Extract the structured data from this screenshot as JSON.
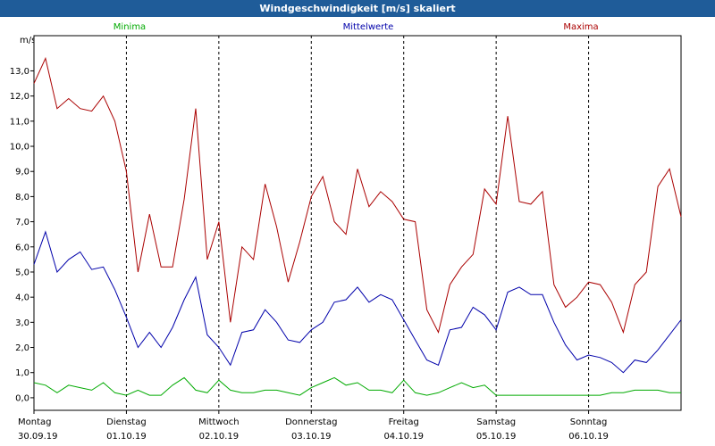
{
  "window": {
    "title": "Windgeschwindigkeit [m/s] skaliert"
  },
  "chart_data": {
    "type": "line",
    "title": "Windgeschwindigkeit [m/s] skaliert",
    "ylabel": "m/s",
    "xlabel": "",
    "ylim": [
      -0.5,
      14.4
    ],
    "yticks": [
      "0,0",
      "1,0",
      "2,0",
      "3,0",
      "4,0",
      "5,0",
      "6,0",
      "7,0",
      "8,0",
      "9,0",
      "10,0",
      "11,0",
      "12,0",
      "13,0"
    ],
    "days": [
      {
        "name": "Montag",
        "date": "30.09.19"
      },
      {
        "name": "Dienstag",
        "date": "01.10.19"
      },
      {
        "name": "Mittwoch",
        "date": "02.10.19"
      },
      {
        "name": "Donnerstag",
        "date": "03.10.19"
      },
      {
        "name": "Freitag",
        "date": "04.10.19"
      },
      {
        "name": "Samstag",
        "date": "05.10.19"
      },
      {
        "name": "Sonntag",
        "date": "06.10.19"
      }
    ],
    "grid": true,
    "legend_position": "top",
    "x_hours": [
      0,
      3,
      6,
      9,
      12,
      15,
      18,
      21,
      24,
      27,
      30,
      33,
      36,
      39,
      42,
      45,
      48,
      51,
      54,
      57,
      60,
      63,
      66,
      69,
      72,
      75,
      78,
      81,
      84,
      87,
      90,
      93,
      96,
      99,
      102,
      105,
      108,
      111,
      114,
      117,
      120,
      123,
      126,
      129,
      132,
      135,
      138,
      141,
      144,
      147,
      150,
      153,
      156,
      159,
      162,
      165,
      168
    ],
    "series": [
      {
        "name": "Minima",
        "color": "#00aa00",
        "values": [
          0.6,
          0.5,
          0.2,
          0.5,
          0.4,
          0.3,
          0.6,
          0.2,
          0.1,
          0.3,
          0.1,
          0.1,
          0.5,
          0.8,
          0.3,
          0.2,
          0.7,
          0.3,
          0.2,
          0.2,
          0.3,
          0.3,
          0.2,
          0.1,
          0.4,
          0.6,
          0.8,
          0.5,
          0.6,
          0.3,
          0.3,
          0.2,
          0.7,
          0.2,
          0.1,
          0.2,
          0.4,
          0.6,
          0.4,
          0.5,
          0.1,
          0.1,
          0.1,
          0.1,
          0.1,
          0.1,
          0.1,
          0.1,
          0.1,
          0.1,
          0.2,
          0.2,
          0.3,
          0.3,
          0.3,
          0.2,
          0.2
        ]
      },
      {
        "name": "Mittelwerte",
        "color": "#0000aa",
        "values": [
          5.3,
          6.6,
          5.0,
          5.5,
          5.8,
          5.1,
          5.2,
          4.3,
          3.2,
          2.0,
          2.6,
          2.0,
          2.8,
          3.9,
          4.8,
          2.5,
          2.0,
          1.3,
          2.6,
          2.7,
          3.5,
          3.0,
          2.3,
          2.2,
          2.7,
          3.0,
          3.8,
          3.9,
          4.4,
          3.8,
          4.1,
          3.9,
          3.1,
          2.3,
          1.5,
          1.3,
          2.7,
          2.8,
          3.6,
          3.3,
          2.7,
          4.2,
          4.4,
          4.1,
          4.1,
          3.0,
          2.1,
          1.5,
          1.7,
          1.6,
          1.4,
          1.0,
          1.5,
          1.4,
          1.9,
          2.5,
          3.1
        ]
      },
      {
        "name": "Maxima",
        "color": "#aa0000",
        "values": [
          12.5,
          13.5,
          11.5,
          11.9,
          11.5,
          11.4,
          12.0,
          11.0,
          9.0,
          5.0,
          7.3,
          5.2,
          5.2,
          7.9,
          11.5,
          5.5,
          7.0,
          3.0,
          6.0,
          5.5,
          8.5,
          6.8,
          4.6,
          6.2,
          8.0,
          8.8,
          7.0,
          6.5,
          9.1,
          7.6,
          8.2,
          7.8,
          7.1,
          7.0,
          3.5,
          2.6,
          4.5,
          5.2,
          5.7,
          8.3,
          7.7,
          11.2,
          7.8,
          7.7,
          8.2,
          4.5,
          3.6,
          4.0,
          4.6,
          4.5,
          3.8,
          2.6,
          4.5,
          5.0,
          8.4,
          9.1,
          7.2
        ]
      }
    ]
  }
}
